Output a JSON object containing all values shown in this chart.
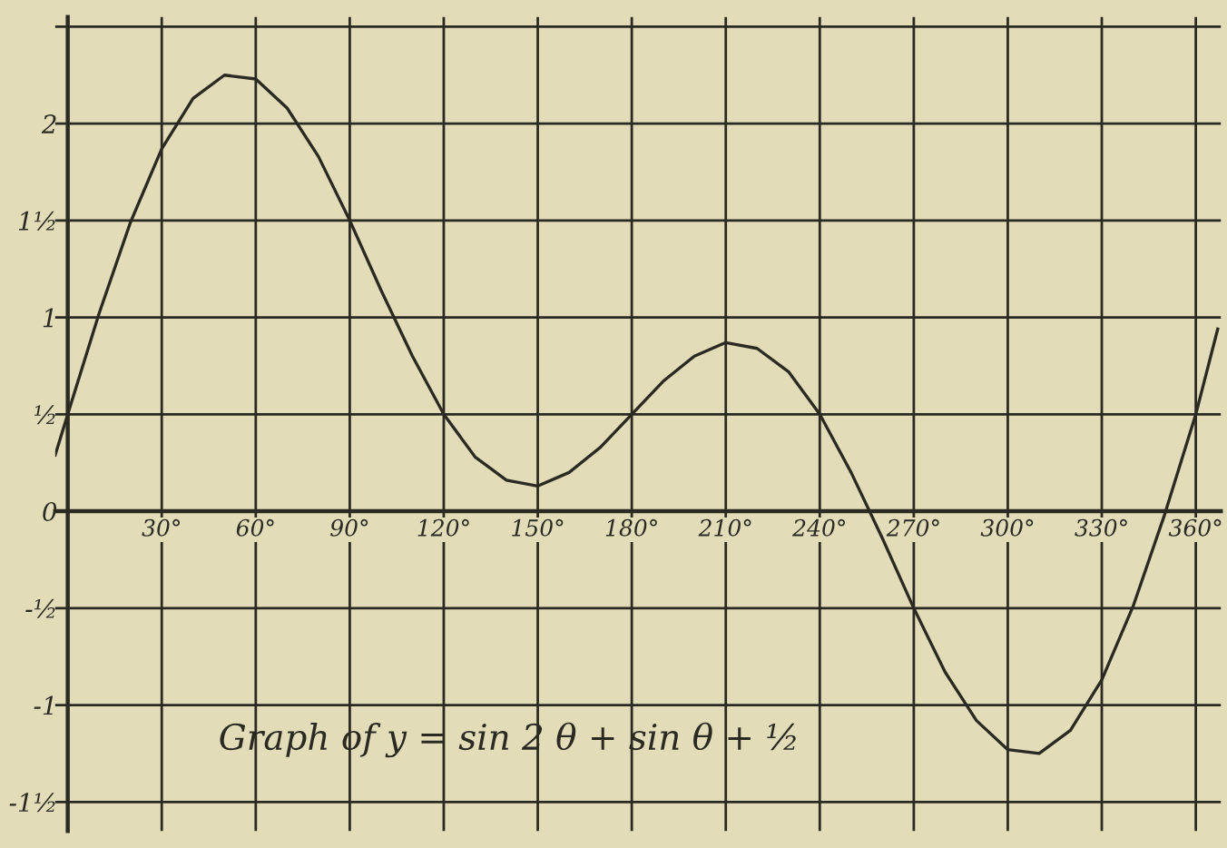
{
  "chart_data": {
    "type": "line",
    "annotations": [
      "Graph of y = sin 2 θ + sin θ + ½"
    ],
    "x": [
      -4,
      0,
      10,
      20,
      30,
      40,
      50,
      60,
      70,
      80,
      90,
      100,
      110,
      120,
      130,
      140,
      150,
      160,
      170,
      180,
      190,
      200,
      210,
      220,
      230,
      240,
      250,
      260,
      270,
      280,
      290,
      300,
      310,
      320,
      330,
      340,
      350,
      360,
      367
    ],
    "series": [
      {
        "color": "#2b2a22",
        "values": [
          0.29,
          0.5,
          1.02,
          1.49,
          1.87,
          2.13,
          2.25,
          2.23,
          2.08,
          1.83,
          1.5,
          1.14,
          0.8,
          0.5,
          0.28,
          0.16,
          0.13,
          0.2,
          0.33,
          0.5,
          0.67,
          0.8,
          0.87,
          0.84,
          0.72,
          0.5,
          0.2,
          -0.14,
          -0.5,
          -0.83,
          -1.08,
          -1.23,
          -1.25,
          -1.13,
          -0.87,
          -0.49,
          -0.02,
          0.5,
          0.94
        ]
      }
    ],
    "xlim": [
      -4,
      368
    ],
    "ylim": [
      -1.65,
      2.55
    ],
    "xticks": [
      {
        "value": 0,
        "label": null
      },
      {
        "value": 30,
        "label": "30°"
      },
      {
        "value": 60,
        "label": "60°"
      },
      {
        "value": 90,
        "label": "90°"
      },
      {
        "value": 120,
        "label": "120°"
      },
      {
        "value": 150,
        "label": "150°"
      },
      {
        "value": 180,
        "label": "180°"
      },
      {
        "value": 210,
        "label": "210°"
      },
      {
        "value": 240,
        "label": "240°"
      },
      {
        "value": 270,
        "label": "270°"
      },
      {
        "value": 300,
        "label": "300°"
      },
      {
        "value": 330,
        "label": "330°"
      },
      {
        "value": 360,
        "label": "360°"
      }
    ],
    "yticks": [
      {
        "value": -1.5,
        "label": "-1½"
      },
      {
        "value": -1,
        "label": "-1"
      },
      {
        "value": -0.5,
        "label": "-½"
      },
      0,
      {
        "value": 0.5,
        "label": "½"
      },
      1,
      {
        "value": 1.5,
        "label": "1½"
      },
      2,
      {
        "value": 2.5,
        "label": null
      }
    ],
    "grid": true,
    "legend": false,
    "marker": "none",
    "line_style": "solid"
  }
}
